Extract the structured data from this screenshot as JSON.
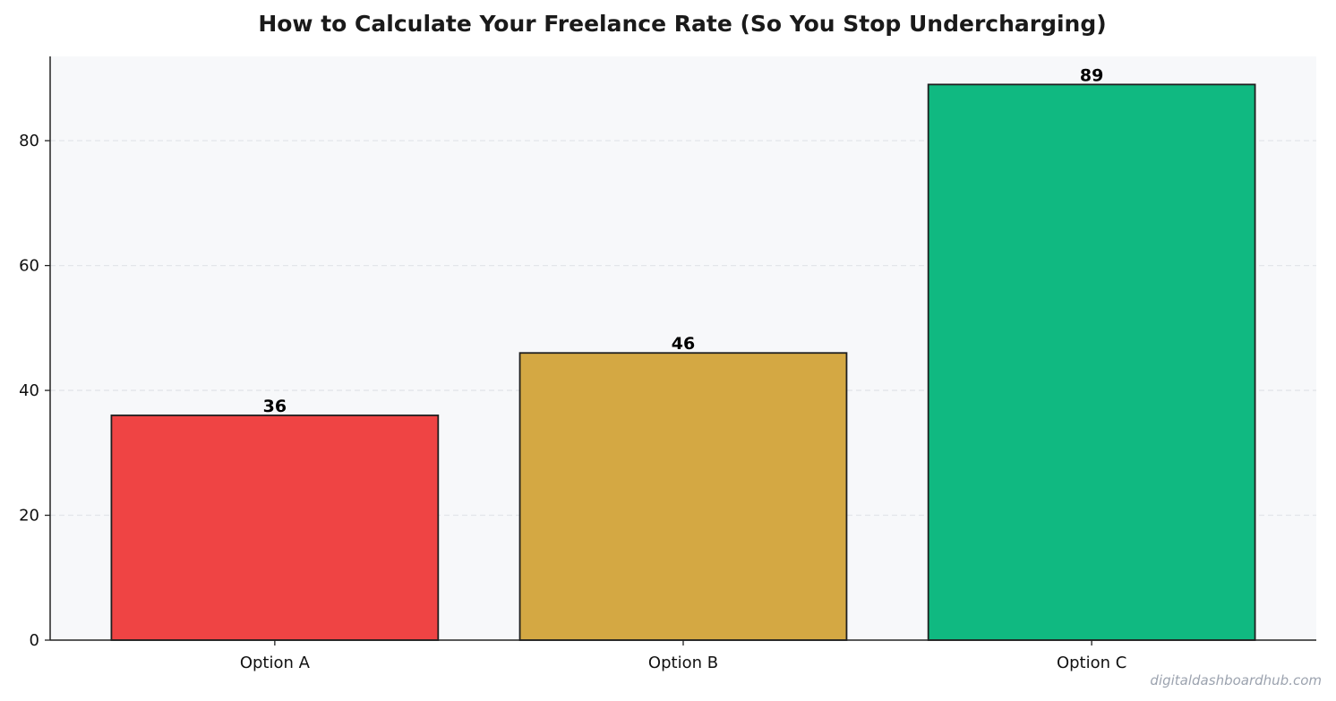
{
  "watermark": "digitaldashboardhub.com",
  "colors": {
    "plot_background": "#f7f8fa",
    "grid": "#e3e5ea",
    "axis": "#222222",
    "bar_edge": "#1f1f1f"
  },
  "chart_data": {
    "type": "bar",
    "title": "How to Calculate Your Freelance Rate (So You Stop Undercharging)",
    "xlabel": "",
    "ylabel": "",
    "categories": [
      "Option A",
      "Option B",
      "Option C"
    ],
    "values": [
      36,
      46,
      89
    ],
    "bar_colors": [
      "#ef4444",
      "#d4a843",
      "#10b981"
    ],
    "ylim": [
      0,
      93.5
    ],
    "yticks": [
      0,
      20,
      40,
      60,
      80
    ],
    "grid": true,
    "data_labels": true
  }
}
